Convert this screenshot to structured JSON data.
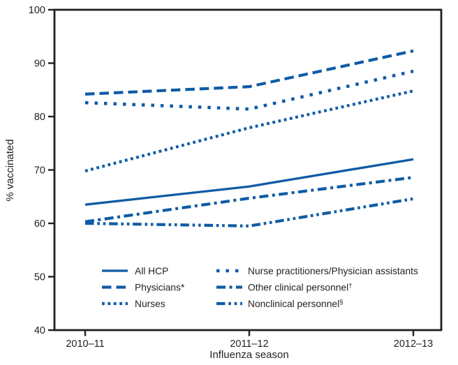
{
  "chart_data": {
    "type": "line",
    "title": "",
    "categories": [
      "2010–11",
      "2011–12",
      "2012–13"
    ],
    "xlabel": "Influenza season",
    "ylabel": "% vaccinated",
    "ylim": [
      40,
      100
    ],
    "yticks": [
      40,
      50,
      60,
      70,
      80,
      90,
      100
    ],
    "grid": false,
    "legend_position": "inside-bottom-two-columns",
    "line_color": "#0f5ba6",
    "axis_color": "#231f20",
    "series": [
      {
        "name": "All HCP",
        "suffix": "",
        "dash": "solid",
        "values": [
          63.5,
          66.9,
          72.0
        ]
      },
      {
        "name": "Physicians",
        "suffix": "*",
        "dash": "long-dash",
        "values": [
          84.2,
          85.6,
          92.3
        ]
      },
      {
        "name": "Nurses",
        "suffix": "",
        "dash": "dot",
        "values": [
          69.8,
          77.9,
          84.8
        ]
      },
      {
        "name": "Nurse practitioners/Physician assistants",
        "suffix": "",
        "dash": "sparse-dot",
        "values": [
          82.6,
          81.4,
          88.5
        ]
      },
      {
        "name": "Other clinical personnel",
        "suffix": "†",
        "dash": "dash-dot",
        "values": [
          60.3,
          64.7,
          68.6
        ]
      },
      {
        "name": "Nonclinical personnel",
        "suffix": "§",
        "dash": "dash-dot-dot",
        "values": [
          60.0,
          59.5,
          64.6
        ]
      }
    ]
  }
}
